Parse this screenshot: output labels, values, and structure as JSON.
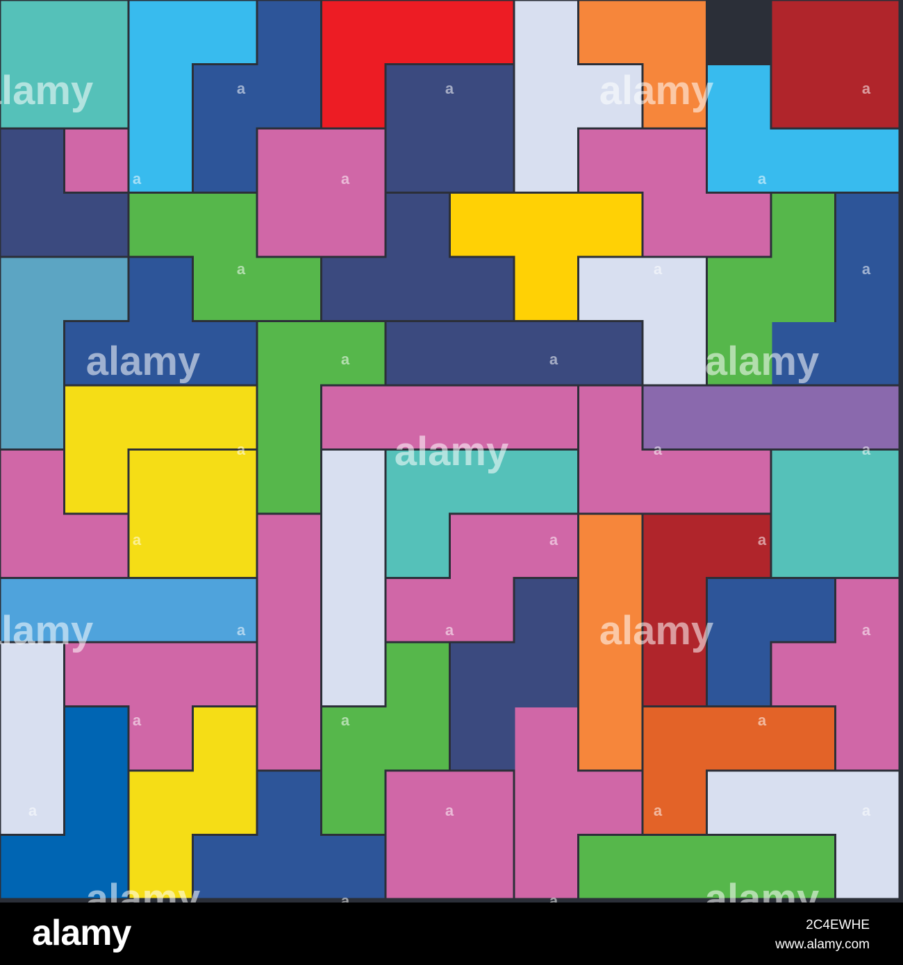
{
  "mosaic": {
    "tiles": [
      {
        "color": "#55c1b9"
      },
      {
        "color": "#38bbee"
      },
      {
        "color": "#2d5599"
      },
      {
        "color": "#ed1c24"
      },
      {
        "color": "#3b4a7f"
      },
      {
        "color": "#d8dff0"
      },
      {
        "color": "#f6863b"
      },
      {
        "color": "#b0252b"
      },
      {
        "color": "#38bbee"
      },
      {
        "color": "#3b4a7f"
      },
      {
        "color": "#d067a7"
      },
      {
        "color": "#d067a7"
      },
      {
        "color": "#d067a7"
      },
      {
        "color": "#56b74b"
      },
      {
        "color": "#3b4a7f"
      },
      {
        "color": "#ffd105"
      },
      {
        "color": "#56b74b"
      },
      {
        "color": "#2d5599"
      },
      {
        "color": "#5ca5c3"
      },
      {
        "color": "#2d5599"
      },
      {
        "color": "#d8dff0"
      },
      {
        "color": "#56b74b"
      },
      {
        "color": "#3b4a7f"
      },
      {
        "color": "#f5dd16"
      },
      {
        "color": "#f5dd16"
      },
      {
        "color": "#d067a7"
      },
      {
        "color": "#d067a7"
      },
      {
        "color": "#8a69ad"
      },
      {
        "color": "#d067a7"
      },
      {
        "color": "#d8dff0"
      },
      {
        "color": "#55c1b9"
      },
      {
        "color": "#55c1b9"
      },
      {
        "color": "#d067a7"
      },
      {
        "color": "#f6863b"
      },
      {
        "color": "#b0252b"
      },
      {
        "color": "#d067a7"
      },
      {
        "color": "#4fa3dc"
      },
      {
        "color": "#3b4a7f"
      },
      {
        "color": "#2d5599"
      },
      {
        "color": "#d067a7"
      },
      {
        "color": "#56b74b"
      },
      {
        "color": "#d8dff0"
      },
      {
        "color": "#d067a7"
      },
      {
        "color": "#d067a7"
      },
      {
        "color": "#0065b3"
      },
      {
        "color": "#f5dd16"
      },
      {
        "color": "#2d5599"
      },
      {
        "color": "#d067a7"
      },
      {
        "color": "#e36328"
      },
      {
        "color": "#d8dff0"
      },
      {
        "color": "#56b74b"
      }
    ],
    "outline_color": "#2b2f38"
  },
  "watermark": {
    "word": "alamy",
    "mark": "a"
  },
  "footer": {
    "logo": "alamy",
    "image_id": "2C4EWHE",
    "url": "www.alamy.com"
  }
}
